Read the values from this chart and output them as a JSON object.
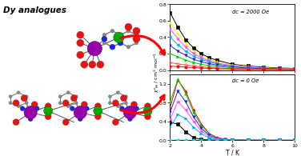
{
  "title_text": "Dy analogues",
  "top_plot": {
    "label": "dc = 2000 Oe",
    "ylim": [
      0,
      0.8
    ],
    "yticks": [
      0.0,
      0.2,
      0.4,
      0.6,
      0.8
    ],
    "series": [
      {
        "T": [
          2.0,
          2.5,
          3.0,
          3.5,
          4.0,
          4.5,
          5.0,
          6.0,
          7.0,
          8.0,
          9.0,
          10.0
        ],
        "chi": [
          0.7,
          0.52,
          0.37,
          0.27,
          0.2,
          0.15,
          0.12,
          0.07,
          0.05,
          0.035,
          0.025,
          0.02
        ],
        "color": "#000000",
        "marker": "s",
        "markersize": 2.5,
        "lw": 0.7
      },
      {
        "T": [
          2.0,
          2.5,
          3.0,
          3.5,
          4.0,
          4.5,
          5.0,
          6.0,
          7.0,
          8.0,
          9.0,
          10.0
        ],
        "chi": [
          0.58,
          0.44,
          0.32,
          0.23,
          0.17,
          0.13,
          0.1,
          0.06,
          0.04,
          0.028,
          0.02,
          0.015
        ],
        "color": "#FFEE00",
        "marker": "^",
        "markersize": 2.5,
        "lw": 0.7
      },
      {
        "T": [
          2.0,
          2.5,
          3.0,
          3.5,
          4.0,
          4.5,
          5.0,
          6.0,
          7.0,
          8.0,
          9.0,
          10.0
        ],
        "chi": [
          0.5,
          0.38,
          0.28,
          0.2,
          0.15,
          0.11,
          0.085,
          0.052,
          0.034,
          0.024,
          0.018,
          0.013
        ],
        "color": "#FF44FF",
        "marker": "v",
        "markersize": 2.5,
        "lw": 0.7
      },
      {
        "T": [
          2.0,
          2.5,
          3.0,
          3.5,
          4.0,
          4.5,
          5.0,
          6.0,
          7.0,
          8.0,
          9.0,
          10.0
        ],
        "chi": [
          0.4,
          0.31,
          0.23,
          0.17,
          0.13,
          0.1,
          0.075,
          0.046,
          0.03,
          0.021,
          0.016,
          0.012
        ],
        "color": "#00AAFF",
        "marker": "<",
        "markersize": 2.5,
        "lw": 0.7
      },
      {
        "T": [
          2.0,
          2.5,
          3.0,
          3.5,
          4.0,
          4.5,
          5.0,
          6.0,
          7.0,
          8.0,
          9.0,
          10.0
        ],
        "chi": [
          0.3,
          0.23,
          0.18,
          0.13,
          0.1,
          0.078,
          0.06,
          0.037,
          0.024,
          0.017,
          0.013,
          0.01
        ],
        "color": "#2222CC",
        "marker": "v",
        "markersize": 2.5,
        "lw": 0.7
      },
      {
        "T": [
          2.0,
          2.5,
          3.0,
          3.5,
          4.0,
          4.5,
          5.0,
          6.0,
          7.0,
          8.0,
          9.0,
          10.0
        ],
        "chi": [
          0.2,
          0.16,
          0.12,
          0.09,
          0.07,
          0.055,
          0.043,
          0.027,
          0.018,
          0.013,
          0.01,
          0.008
        ],
        "color": "#00CC00",
        "marker": ">",
        "markersize": 2.5,
        "lw": 0.7
      },
      {
        "T": [
          2.0,
          2.5,
          3.0,
          3.5,
          4.0,
          4.5,
          5.0,
          6.0,
          7.0,
          8.0,
          9.0,
          10.0
        ],
        "chi": [
          0.09,
          0.075,
          0.062,
          0.05,
          0.04,
          0.032,
          0.026,
          0.017,
          0.012,
          0.009,
          0.007,
          0.006
        ],
        "color": "#FF4444",
        "marker": "o",
        "markersize": 2.5,
        "lw": 0.7,
        "filled": false
      },
      {
        "T": [
          2.0,
          2.5,
          3.0,
          3.5,
          4.0,
          4.5,
          5.0,
          6.0,
          7.0,
          8.0,
          9.0,
          10.0
        ],
        "chi": [
          0.048,
          0.042,
          0.036,
          0.03,
          0.025,
          0.021,
          0.017,
          0.012,
          0.009,
          0.007,
          0.006,
          0.005
        ],
        "color": "#FF0000",
        "marker": "o",
        "markersize": 2.5,
        "lw": 0.7
      }
    ]
  },
  "bottom_plot": {
    "label": "dc = 0 Oe",
    "ylim": [
      0,
      1.4
    ],
    "yticks": [
      0.0,
      0.4,
      0.8,
      1.2
    ],
    "series": [
      {
        "T": [
          2.0,
          2.5,
          3.0,
          3.5,
          4.0,
          4.5,
          5.0,
          5.5,
          6.0,
          7.0,
          8.0,
          9.0,
          10.0
        ],
        "chi": [
          0.38,
          0.35,
          0.18,
          0.06,
          0.02,
          0.01,
          0.005,
          0.003,
          0.002,
          0.001,
          0.001,
          0.001,
          0.001
        ],
        "color": "#000000",
        "marker": "s",
        "markersize": 2.5,
        "lw": 0.7
      },
      {
        "T": [
          2.0,
          2.5,
          3.0,
          3.5,
          4.0,
          4.5,
          5.0,
          5.5,
          6.0,
          7.0,
          8.0,
          9.0,
          10.0
        ],
        "chi": [
          0.7,
          1.28,
          1.05,
          0.65,
          0.35,
          0.15,
          0.06,
          0.025,
          0.012,
          0.005,
          0.003,
          0.002,
          0.001
        ],
        "color": "#FF0000",
        "marker": "^",
        "markersize": 2.5,
        "lw": 0.7
      },
      {
        "T": [
          2.0,
          2.5,
          3.0,
          3.5,
          4.0,
          4.5,
          5.0,
          5.5,
          6.0,
          7.0,
          8.0,
          9.0,
          10.0
        ],
        "chi": [
          0.82,
          1.3,
          1.0,
          0.6,
          0.32,
          0.14,
          0.055,
          0.022,
          0.01,
          0.004,
          0.002,
          0.001,
          0.001
        ],
        "color": "#00CC00",
        "marker": "^",
        "markersize": 2.5,
        "lw": 0.7
      },
      {
        "T": [
          2.0,
          2.5,
          3.0,
          3.5,
          4.0,
          4.5,
          5.0,
          5.5,
          6.0,
          7.0,
          8.0,
          9.0,
          10.0
        ],
        "chi": [
          0.6,
          1.05,
          0.82,
          0.5,
          0.26,
          0.11,
          0.044,
          0.018,
          0.008,
          0.003,
          0.002,
          0.001,
          0.001
        ],
        "color": "#2222CC",
        "marker": "v",
        "markersize": 2.5,
        "lw": 0.7
      },
      {
        "T": [
          2.0,
          2.5,
          3.0,
          3.5,
          4.0,
          4.5,
          5.0,
          5.5,
          6.0,
          7.0,
          8.0,
          9.0,
          10.0
        ],
        "chi": [
          0.45,
          0.82,
          0.65,
          0.4,
          0.2,
          0.085,
          0.034,
          0.014,
          0.006,
          0.003,
          0.001,
          0.001,
          0.001
        ],
        "color": "#FF44FF",
        "marker": "<",
        "markersize": 2.5,
        "lw": 0.7
      },
      {
        "T": [
          2.0,
          2.5,
          3.0,
          3.5,
          4.0,
          4.5,
          5.0,
          5.5,
          6.0,
          7.0,
          8.0,
          9.0,
          10.0
        ],
        "chi": [
          0.28,
          0.55,
          0.46,
          0.28,
          0.14,
          0.058,
          0.023,
          0.009,
          0.004,
          0.002,
          0.001,
          0.001,
          0.001
        ],
        "color": "#00AAFF",
        "marker": ">",
        "markersize": 2.5,
        "lw": 0.7
      },
      {
        "T": [
          2.0,
          2.5,
          3.0,
          3.5,
          4.0,
          4.5,
          5.0,
          5.5,
          6.0,
          7.0,
          8.0,
          9.0,
          10.0
        ],
        "chi": [
          0.005,
          0.005,
          0.004,
          0.004,
          0.003,
          0.003,
          0.003,
          0.002,
          0.002,
          0.002,
          0.001,
          0.001,
          0.001
        ],
        "color": "#00DDDD",
        "marker": "o",
        "markersize": 2.5,
        "lw": 0.7
      }
    ]
  },
  "xlabel": "T / K",
  "xlim": [
    2,
    10
  ],
  "xticks": [
    2,
    4,
    6,
    8,
    10
  ],
  "fig_bg": "#FFFFFF"
}
